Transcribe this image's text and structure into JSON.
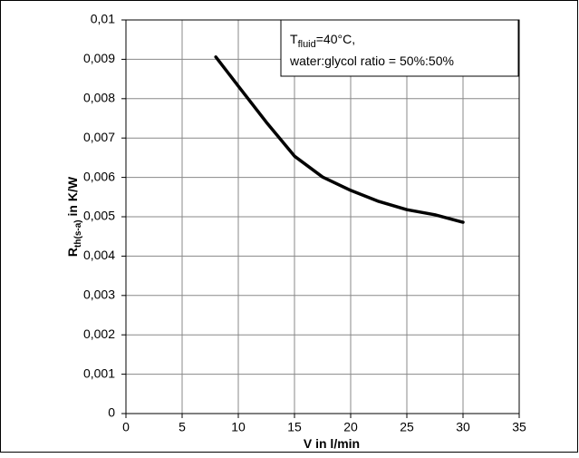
{
  "chart_data": {
    "type": "line",
    "x_label": "V in l/min",
    "y_label": {
      "main": "R",
      "sub": "th(s-a)",
      "rest": " in K/W"
    },
    "annotation": {
      "line1": {
        "main": "T",
        "sub": "fluid",
        "rest": "=40°C,"
      },
      "line2": "water:glycol ratio = 50%:50%"
    },
    "series": [
      {
        "color": "#000000",
        "x": [
          8,
          10,
          12.5,
          15,
          17.5,
          20,
          22.5,
          25,
          27.5,
          30
        ],
        "values": [
          0.00906,
          0.00832,
          0.0074,
          0.00654,
          0.00601,
          0.00567,
          0.00539,
          0.00518,
          0.00505,
          0.00486
        ]
      }
    ],
    "xlim": [
      0,
      35
    ],
    "xticks": [
      0,
      5,
      10,
      15,
      20,
      25,
      30,
      35
    ],
    "ylim": [
      0,
      0.01
    ],
    "yticks": [
      0,
      {
        "value": 0.001,
        "label": "0,001"
      },
      {
        "value": 0.002,
        "label": "0,002"
      },
      {
        "value": 0.003,
        "label": "0,003"
      },
      {
        "value": 0.004,
        "label": "0,004"
      },
      {
        "value": 0.005,
        "label": "0,005"
      },
      {
        "value": 0.006,
        "label": "0,006"
      },
      {
        "value": 0.007,
        "label": "0,007"
      },
      {
        "value": 0.008,
        "label": "0,008"
      },
      {
        "value": 0.009,
        "label": "0,009"
      },
      {
        "value": 0.01,
        "label": "0,01"
      }
    ],
    "grid": true
  }
}
